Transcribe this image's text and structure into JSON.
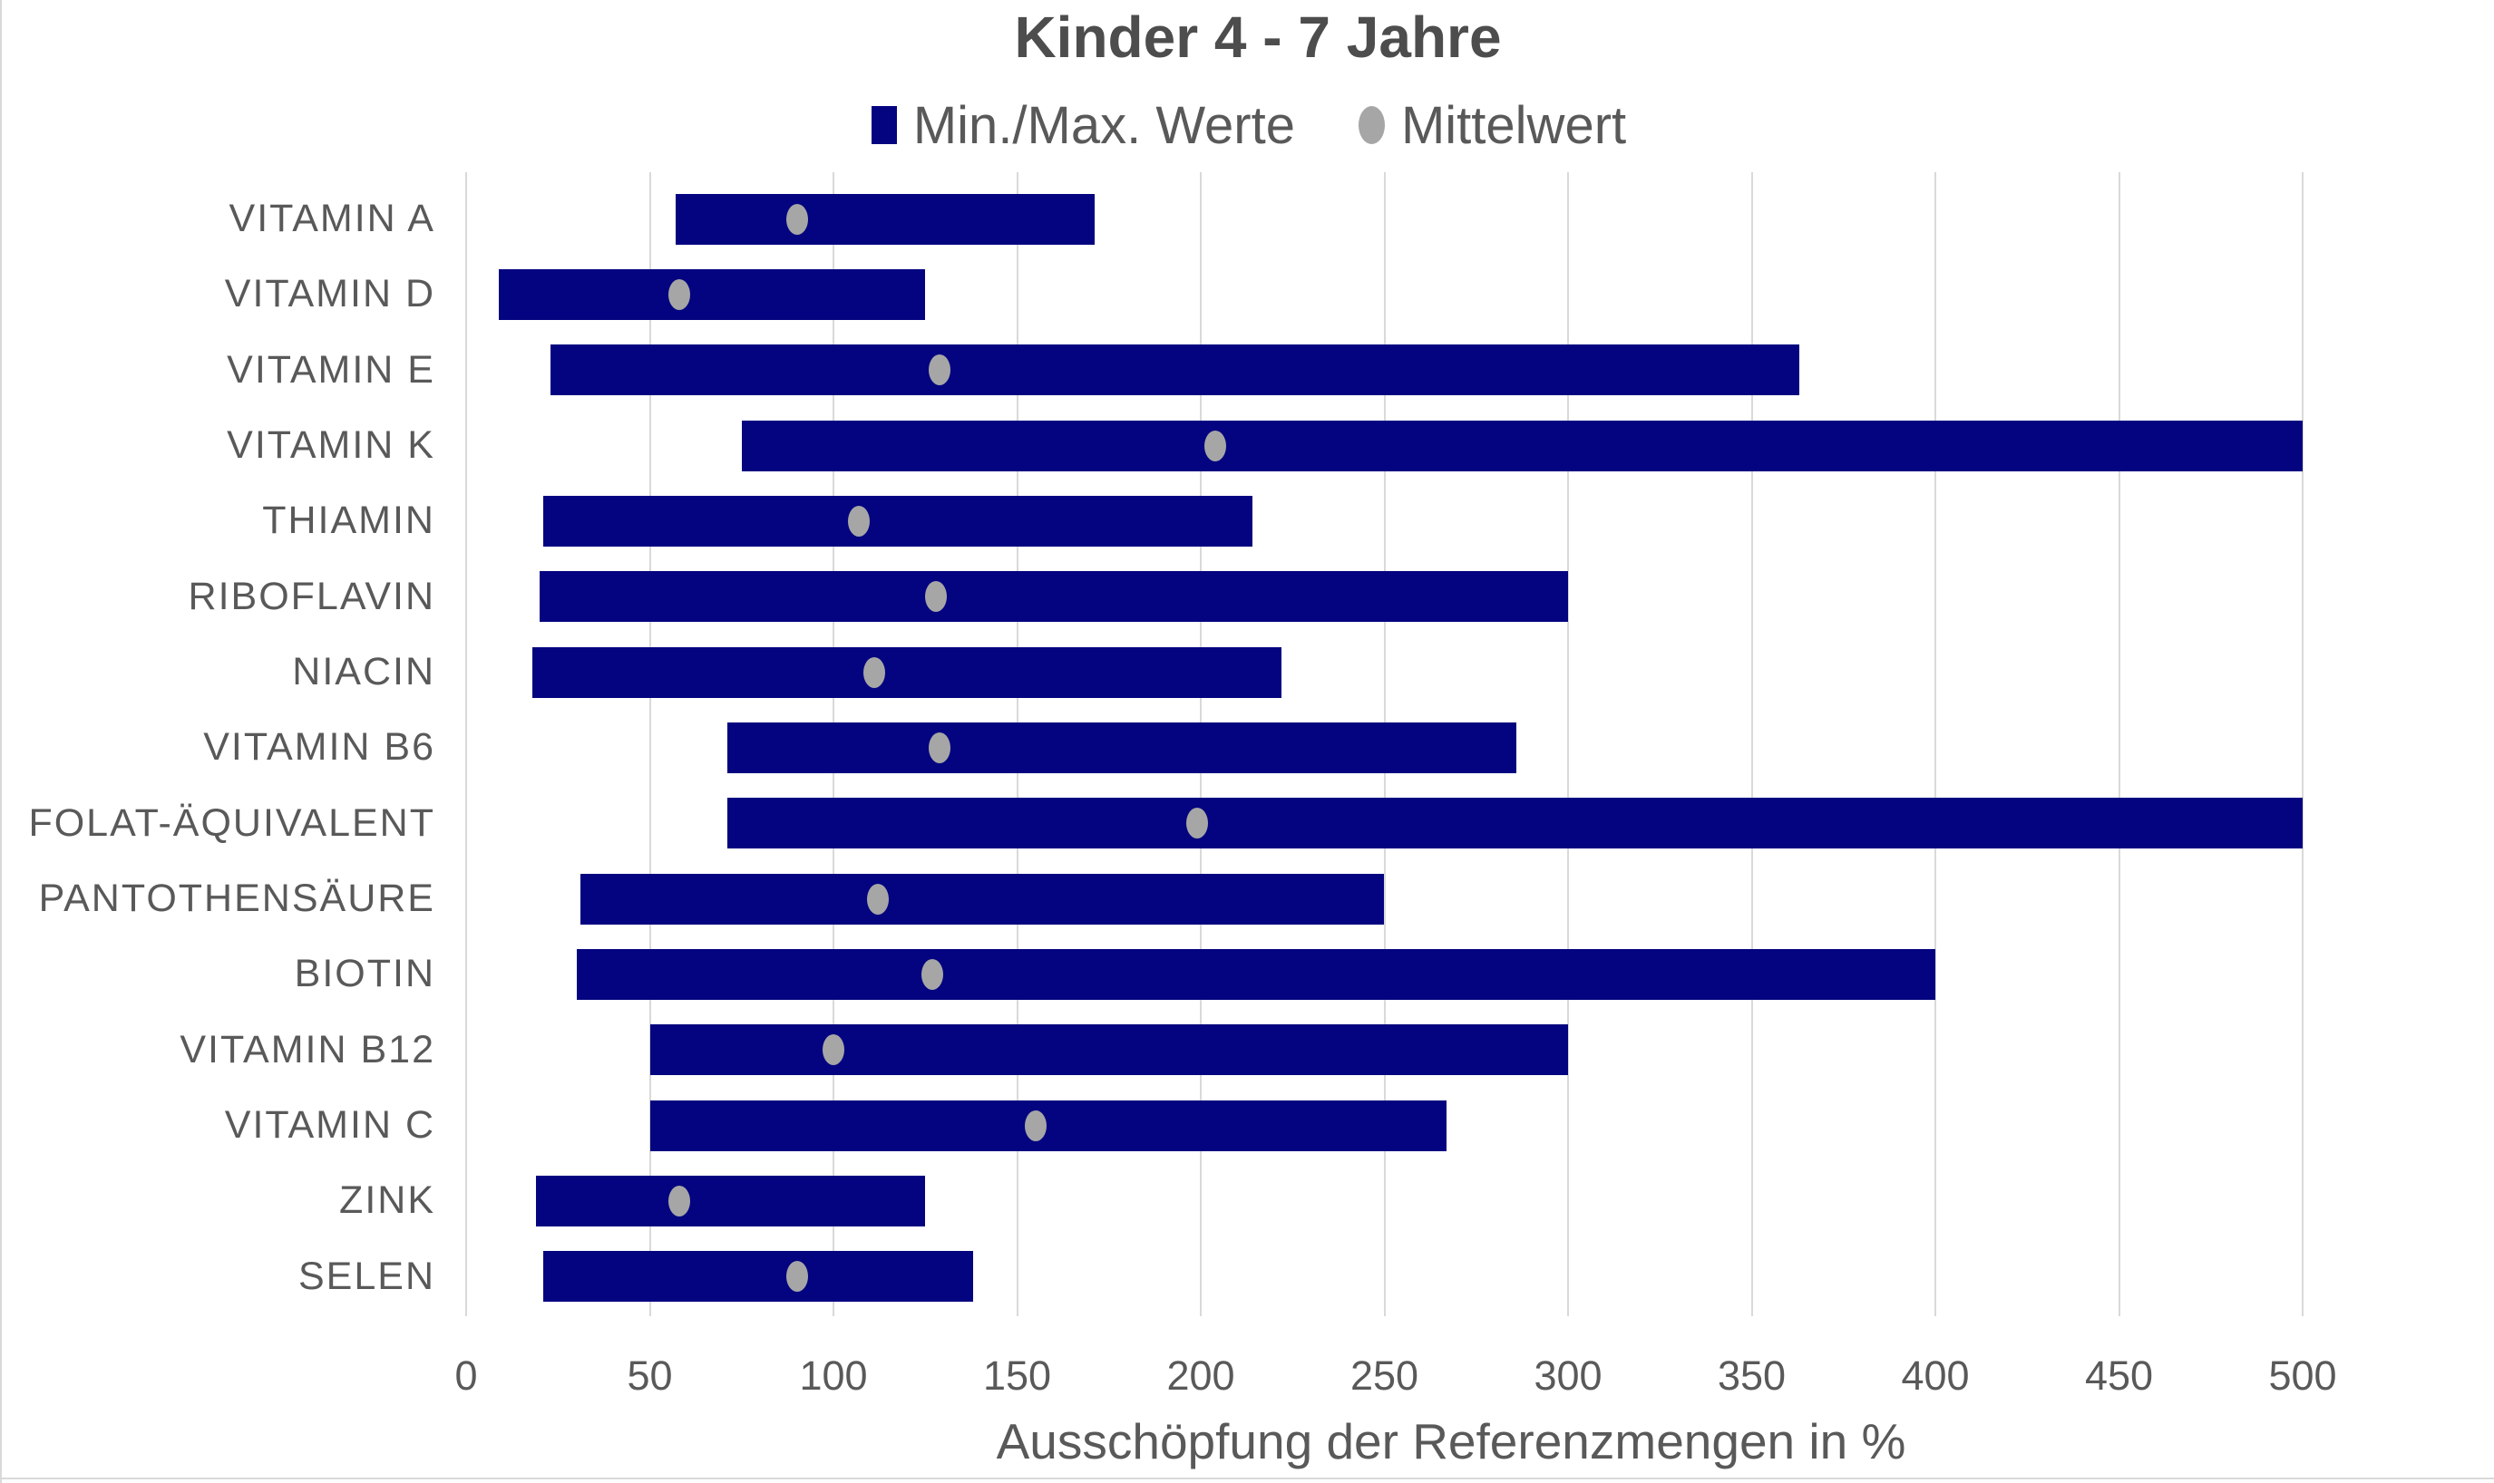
{
  "title": "Kinder 4 - 7 Jahre",
  "legend": {
    "items": [
      {
        "label": "Min./Max. Werte",
        "marker": "square"
      },
      {
        "label": "Mittelwert",
        "marker": "circle"
      }
    ]
  },
  "x_axis": {
    "label": "Ausschöpfung der Referenzmengen in %",
    "min": 0,
    "max": 500,
    "ticks": [
      0,
      50,
      100,
      150,
      200,
      250,
      300,
      350,
      400,
      450,
      500
    ]
  },
  "colors": {
    "bar": "#040480",
    "mean_dot": "#a6a6a6",
    "grid": "#d9d9d9",
    "text": "#595959",
    "title_text": "#4d4d4d",
    "background": "#ffffff"
  },
  "chart_data": {
    "type": "bar",
    "subtype": "horizontal-range-bar-with-mean-points",
    "title": "Kinder 4 - 7 Jahre",
    "xlabel": "Ausschöpfung der Referenzmengen in %",
    "ylabel": "",
    "xlim": [
      0,
      500
    ],
    "grid": "vertical",
    "legend_position": "top",
    "categories": [
      "VITAMIN A",
      "VITAMIN D",
      "VITAMIN E",
      "VITAMIN K",
      "THIAMIN",
      "RIBOFLAVIN",
      "NIACIN",
      "VITAMIN B6",
      "FOLAT-ÄQUIVALENT",
      "PANTOTHENSÄURE",
      "BIOTIN",
      "VITAMIN B12",
      "VITAMIN C",
      "ZINK",
      "SELEN"
    ],
    "series": [
      {
        "name": "Min./Max. Werte",
        "type": "range",
        "ranges": [
          [
            57,
            171
          ],
          [
            9,
            125
          ],
          [
            23,
            363
          ],
          [
            75,
            500
          ],
          [
            21,
            214
          ],
          [
            20,
            300
          ],
          [
            18,
            222
          ],
          [
            71,
            286
          ],
          [
            71,
            500
          ],
          [
            31,
            250
          ],
          [
            30,
            400
          ],
          [
            50,
            300
          ],
          [
            50,
            267
          ],
          [
            19,
            125
          ],
          [
            21,
            138
          ]
        ]
      },
      {
        "name": "Mittelwert",
        "type": "point",
        "values": [
          90,
          58,
          129,
          204,
          107,
          128,
          111,
          129,
          199,
          112,
          127,
          100,
          155,
          58,
          90
        ]
      }
    ]
  }
}
